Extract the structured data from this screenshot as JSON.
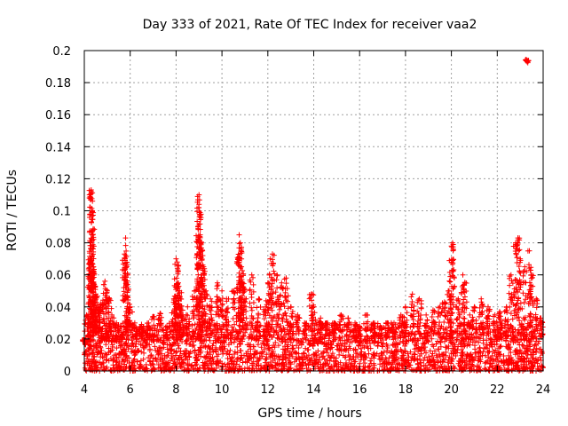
{
  "chart_data": {
    "type": "scatter",
    "title": "Day 333 of 2021, Rate Of TEC Index for receiver vaa2",
    "xlabel": "GPS time / hours",
    "ylabel": "ROTI / TECUs",
    "xlim": [
      4,
      24
    ],
    "ylim": [
      0,
      0.2
    ],
    "xticks": [
      "4",
      "6",
      "8",
      "10",
      "12",
      "14",
      "16",
      "18",
      "20",
      "22",
      "24"
    ],
    "yticks": [
      "0",
      "0.02",
      "0.04",
      "0.06",
      "0.08",
      "0.1",
      "0.12",
      "0.14",
      "0.16",
      "0.18",
      "0.2"
    ],
    "grid": true,
    "marker": "+",
    "color": "#ff0000",
    "series": [
      {
        "name": "vaa2",
        "x": [
          4.0,
          4.1,
          4.2,
          4.25,
          4.3,
          4.3,
          4.32,
          4.35,
          4.35,
          4.4,
          4.4,
          4.45,
          4.5,
          4.6,
          4.7,
          4.8,
          4.9,
          5.0,
          5.1,
          5.2,
          5.4,
          5.6,
          5.75,
          5.8,
          5.85,
          5.9,
          6.0,
          6.2,
          6.5,
          6.8,
          7.0,
          7.3,
          7.6,
          7.9,
          8.0,
          8.05,
          8.1,
          8.15,
          8.2,
          8.3,
          8.5,
          8.8,
          8.95,
          9.0,
          9.0,
          9.05,
          9.1,
          9.15,
          9.2,
          9.3,
          9.5,
          9.8,
          10.0,
          10.2,
          10.5,
          10.7,
          10.75,
          10.8,
          10.85,
          10.9,
          11.0,
          11.3,
          11.6,
          11.9,
          12.0,
          12.1,
          12.2,
          12.4,
          12.6,
          12.8,
          13.0,
          13.3,
          13.6,
          13.9,
          14.0,
          14.3,
          14.6,
          14.9,
          15.2,
          15.5,
          15.8,
          16.0,
          16.3,
          16.6,
          16.9,
          17.2,
          17.5,
          17.8,
          18.0,
          18.3,
          18.6,
          18.9,
          19.2,
          19.5,
          19.7,
          19.9,
          20.0,
          20.05,
          20.3,
          20.5,
          20.6,
          20.8,
          21.0,
          21.3,
          21.6,
          21.9,
          22.1,
          22.4,
          22.6,
          22.8,
          22.9,
          23.0,
          23.2,
          23.25,
          23.3,
          23.35,
          23.4,
          23.5,
          23.7,
          23.9
        ],
        "y": [
          0.02,
          0.035,
          0.067,
          0.07,
          0.113,
          0.112,
          0.099,
          0.1,
          0.085,
          0.065,
          0.055,
          0.045,
          0.048,
          0.04,
          0.038,
          0.042,
          0.056,
          0.05,
          0.045,
          0.035,
          0.03,
          0.028,
          0.073,
          0.083,
          0.065,
          0.06,
          0.04,
          0.03,
          0.028,
          0.03,
          0.034,
          0.036,
          0.028,
          0.045,
          0.07,
          0.068,
          0.055,
          0.05,
          0.045,
          0.035,
          0.04,
          0.05,
          0.09,
          0.11,
          0.104,
          0.085,
          0.08,
          0.075,
          0.065,
          0.05,
          0.045,
          0.055,
          0.05,
          0.045,
          0.05,
          0.07,
          0.085,
          0.08,
          0.065,
          0.055,
          0.045,
          0.06,
          0.045,
          0.04,
          0.055,
          0.07,
          0.073,
          0.06,
          0.055,
          0.058,
          0.04,
          0.035,
          0.03,
          0.048,
          0.04,
          0.033,
          0.03,
          0.03,
          0.035,
          0.033,
          0.03,
          0.028,
          0.035,
          0.03,
          0.027,
          0.03,
          0.03,
          0.035,
          0.04,
          0.048,
          0.045,
          0.035,
          0.038,
          0.04,
          0.043,
          0.05,
          0.078,
          0.08,
          0.045,
          0.06,
          0.055,
          0.035,
          0.04,
          0.045,
          0.04,
          0.035,
          0.037,
          0.04,
          0.06,
          0.08,
          0.083,
          0.07,
          0.065,
          0.194,
          0.193,
          0.193,
          0.075,
          0.06,
          0.045,
          0.033
        ],
        "baseline_band": [
          0.0,
          0.03
        ]
      }
    ]
  }
}
